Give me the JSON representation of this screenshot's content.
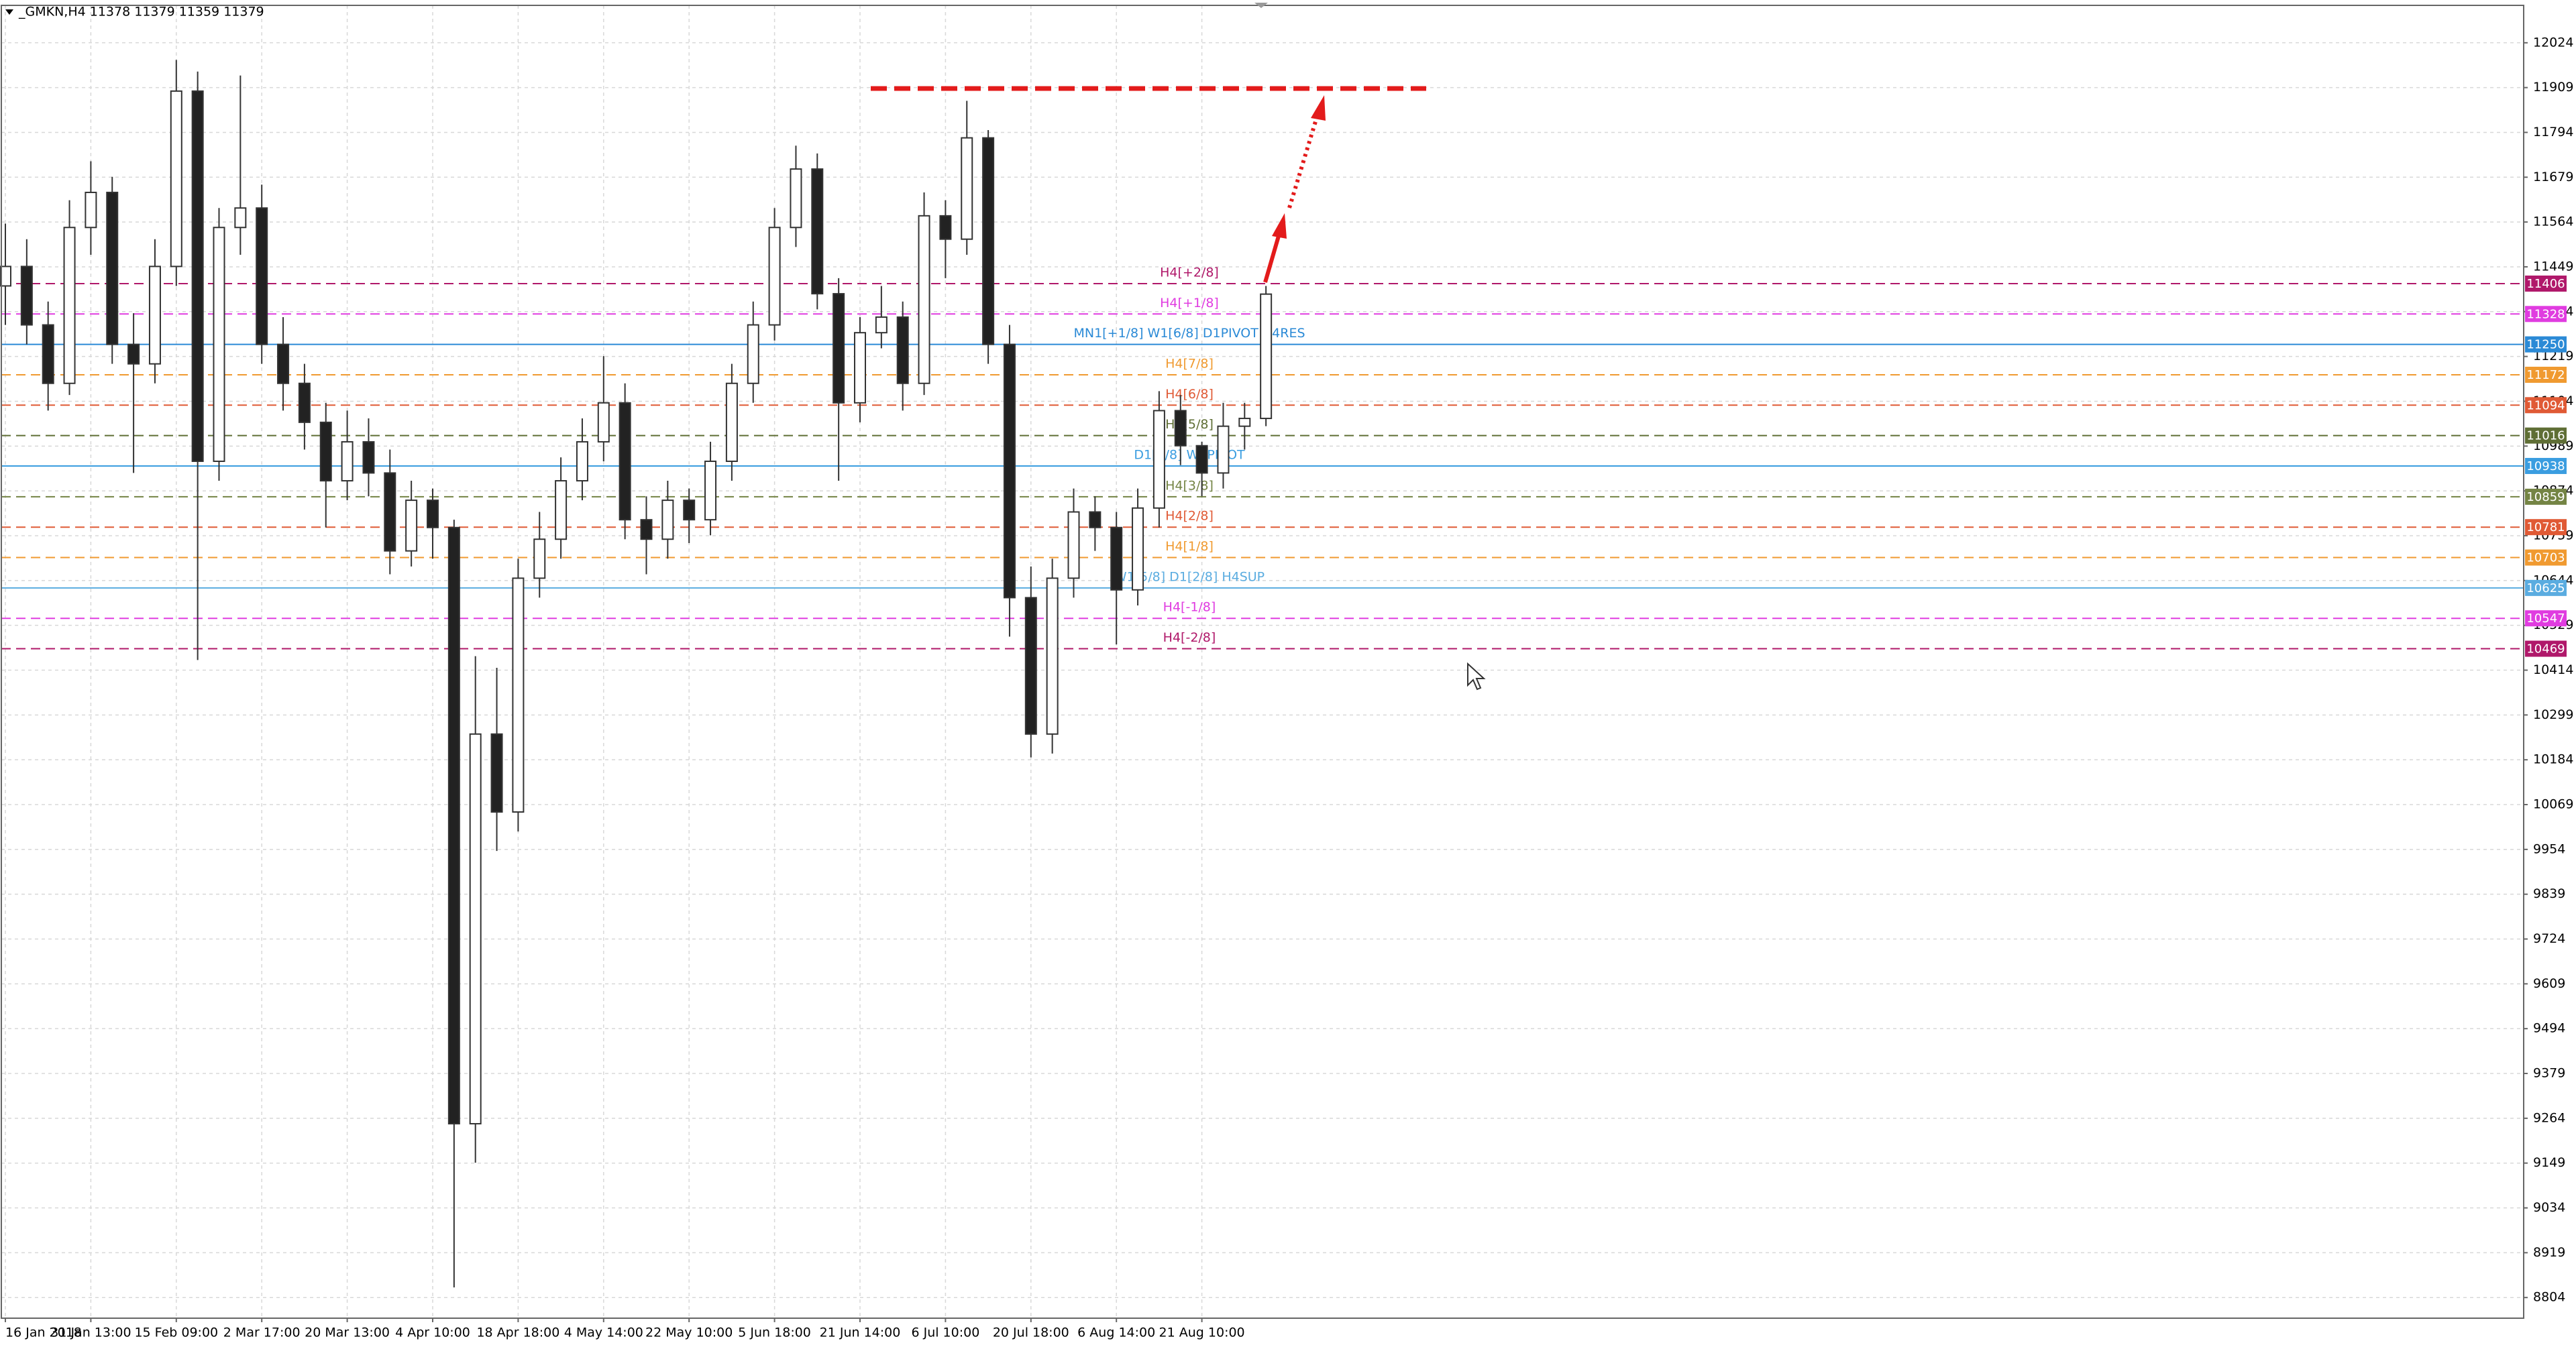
{
  "chart_data": {
    "type": "candlestick",
    "title": "_GMKN,H4  11378 11379 11359 11379",
    "categories": [
      "16 Jan 2018",
      null,
      null,
      null,
      "31 Jan 13:00",
      null,
      null,
      null,
      "15 Feb 09:00",
      null,
      null,
      null,
      "2 Mar 17:00",
      null,
      null,
      null,
      "20 Mar 13:00",
      null,
      null,
      null,
      "4 Apr 10:00",
      null,
      null,
      null,
      "18 Apr 18:00",
      null,
      null,
      null,
      "4 May 14:00",
      null,
      null,
      null,
      "22 May 10:00",
      null,
      null,
      null,
      "5 Jun 18:00",
      null,
      null,
      null,
      "21 Jun 14:00",
      null,
      null,
      null,
      "6 Jul 10:00",
      null,
      null,
      null,
      "20 Jul 18:00",
      null,
      null,
      null,
      "6 Aug 14:00",
      null,
      null,
      null,
      "21 Aug 10:00",
      null,
      null,
      null
    ],
    "open": [
      11400,
      11450,
      11300,
      11150,
      11550,
      11640,
      11250,
      11200,
      11450,
      11900,
      10950,
      11550,
      11600,
      11250,
      11150,
      11050,
      10900,
      11000,
      10920,
      10720,
      10850,
      10780,
      9250,
      10250,
      10050,
      10650,
      10750,
      10900,
      11000,
      11100,
      10800,
      10750,
      10850,
      10800,
      10950,
      11150,
      11300,
      11550,
      11700,
      11380,
      11100,
      11280,
      11320,
      11150,
      11580,
      11520,
      11780,
      11250,
      10600,
      10250,
      10650,
      10820,
      10780,
      10620,
      10830,
      11080,
      10990,
      10920,
      11040,
      11060
    ],
    "high": [
      11560,
      11520,
      11360,
      11620,
      11720,
      11680,
      11330,
      11520,
      11980,
      11950,
      11600,
      11940,
      11660,
      11320,
      11200,
      11100,
      11080,
      11060,
      10980,
      10900,
      10880,
      10800,
      10450,
      10420,
      10700,
      10820,
      10960,
      11060,
      11220,
      11150,
      10860,
      10900,
      10880,
      11000,
      11200,
      11360,
      11600,
      11760,
      11740,
      11420,
      11320,
      11400,
      11360,
      11640,
      11620,
      11875,
      11800,
      11300,
      10680,
      10700,
      10880,
      10860,
      10820,
      10880,
      11130,
      11120,
      11000,
      11100,
      11100,
      11400
    ],
    "low": [
      11300,
      11250,
      11080,
      11120,
      11480,
      11200,
      10920,
      11150,
      11400,
      10440,
      10900,
      11480,
      11200,
      11080,
      10980,
      10780,
      10850,
      10860,
      10660,
      10680,
      10700,
      8830,
      9150,
      9950,
      10000,
      10600,
      10700,
      10850,
      10950,
      10750,
      10660,
      10700,
      10740,
      10760,
      10900,
      11100,
      11260,
      11500,
      11340,
      10900,
      11050,
      11240,
      11080,
      11120,
      11420,
      11480,
      11200,
      10500,
      10190,
      10200,
      10600,
      10720,
      10480,
      10580,
      10780,
      10940,
      10860,
      10880,
      10980,
      11040
    ],
    "close": [
      11450,
      11300,
      11150,
      11550,
      11640,
      11250,
      11200,
      11450,
      11900,
      10950,
      11550,
      11600,
      11250,
      11150,
      11050,
      10900,
      11000,
      10920,
      10720,
      10850,
      10780,
      9250,
      10250,
      10050,
      10650,
      10750,
      10900,
      11000,
      11100,
      10800,
      10750,
      10850,
      10800,
      10950,
      11150,
      11300,
      11550,
      11700,
      11380,
      11100,
      11280,
      11320,
      11150,
      11580,
      11520,
      11780,
      11250,
      10600,
      10250,
      10650,
      10820,
      10780,
      10620,
      10830,
      11080,
      10990,
      10920,
      11040,
      11060,
      11379
    ],
    "ylim": [
      8751,
      12120
    ],
    "yticks": [
      8804,
      8919,
      9034,
      9149,
      9264,
      9379,
      9494,
      9609,
      9724,
      9839,
      9954,
      10069,
      10184,
      10299,
      10414,
      10529,
      10644,
      10759,
      10874,
      10989,
      11104,
      11219,
      11334,
      11449,
      11564,
      11679,
      11794,
      11909,
      12024
    ],
    "grid": true,
    "levels": [
      {
        "label": "H4[+2/8]",
        "value": 11406,
        "color": "#b0186a",
        "style": "dashed"
      },
      {
        "label": "H4[+1/8]",
        "value": 11328,
        "color": "#e03ce0",
        "style": "dashed"
      },
      {
        "label": "MN1[+1/8] W1[6/8] D1PIVOT H4RES",
        "value": 11250,
        "color": "#2b8ad6",
        "style": "solid"
      },
      {
        "label": "H4[7/8]",
        "value": 11172,
        "color": "#f09a30",
        "style": "dashed"
      },
      {
        "label": "H4[6/8]",
        "value": 11094,
        "color": "#e05a35",
        "style": "dashed"
      },
      {
        "label": "H4[5/8]",
        "value": 11016,
        "color": "#5f6e35",
        "style": "dashed"
      },
      {
        "label": "D1[3/8] W1PIVOT",
        "value": 10938,
        "color": "#3a9de0",
        "style": "solid"
      },
      {
        "label": "H4[3/8]",
        "value": 10859,
        "color": "#748444",
        "style": "dashed"
      },
      {
        "label": "H4[2/8]",
        "value": 10781,
        "color": "#e05a35",
        "style": "dashed"
      },
      {
        "label": "H4[1/8]",
        "value": 10703,
        "color": "#f09a30",
        "style": "dashed"
      },
      {
        "label": "W1[5/8] D1[2/8] H4SUP",
        "value": 10625,
        "color": "#5aace0",
        "style": "solid"
      },
      {
        "label": "H4[-1/8]",
        "value": 10547,
        "color": "#e03ce0",
        "style": "dashed"
      },
      {
        "label": "H4[-2/8]",
        "value": 10469,
        "color": "#b0186a",
        "style": "dashed"
      }
    ]
  }
}
